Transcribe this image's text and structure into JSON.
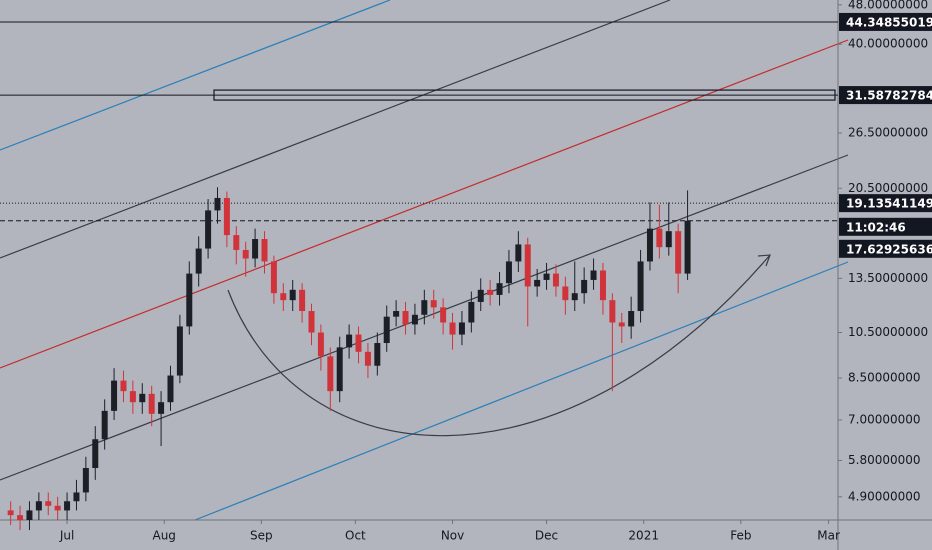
{
  "chart_data": {
    "type": "candlestick",
    "log_scale": true,
    "up_color": "#1c1f26",
    "down_color": "#d1333b",
    "x": [
      -18,
      -15,
      -12,
      -9,
      -6,
      -3,
      0,
      3,
      6,
      9,
      12,
      15,
      18,
      21,
      24,
      27,
      30,
      33,
      36,
      39,
      42,
      45,
      48,
      51,
      54,
      57,
      60,
      63,
      66,
      69,
      72,
      75,
      78,
      81,
      84,
      87,
      90,
      93,
      96,
      99,
      102,
      105,
      108,
      111,
      114,
      117,
      120,
      123,
      126,
      129,
      132,
      135,
      138,
      141,
      144,
      147,
      150,
      153,
      156,
      159,
      162,
      165,
      168,
      171,
      174,
      177,
      180,
      183,
      186,
      189,
      192,
      195,
      198
    ],
    "open": [
      4.6,
      4.5,
      4.4,
      4.6,
      4.8,
      4.7,
      4.6,
      4.8,
      5.0,
      5.6,
      6.4,
      7.3,
      8.4,
      8.0,
      7.6,
      7.9,
      7.2,
      7.6,
      8.6,
      10.8,
      13.8,
      15.5,
      18.5,
      19.6,
      16.5,
      15.4,
      14.8,
      16.2,
      14.6,
      12.6,
      12.2,
      12.8,
      11.6,
      10.5,
      9.4,
      8.0,
      9.8,
      10.4,
      9.6,
      9.0,
      10.0,
      11.3,
      11.6,
      10.9,
      11.4,
      12.2,
      11.8,
      11.0,
      10.4,
      11.0,
      12.1,
      12.8,
      12.5,
      13.2,
      14.6,
      15.8,
      13.0,
      13.4,
      13.8,
      13.0,
      12.2,
      12.6,
      13.4,
      14.0,
      12.2,
      11.0,
      10.8,
      11.6,
      14.6,
      17.0,
      15.6,
      16.8,
      13.8
    ],
    "high": [
      4.8,
      4.7,
      4.8,
      5.0,
      5.0,
      4.9,
      5.0,
      5.3,
      5.9,
      6.8,
      7.7,
      8.9,
      8.8,
      8.4,
      8.3,
      8.2,
      8.0,
      9.0,
      11.4,
      14.6,
      16.4,
      19.5,
      20.6,
      20.2,
      17.2,
      16.0,
      17.0,
      16.8,
      15.0,
      13.2,
      13.4,
      13.2,
      12.0,
      10.9,
      9.8,
      10.3,
      10.9,
      10.8,
      10.0,
      10.5,
      11.9,
      12.2,
      12.1,
      12.0,
      12.8,
      12.8,
      12.3,
      11.5,
      11.6,
      12.7,
      13.5,
      13.4,
      13.9,
      15.4,
      16.8,
      16.3,
      14.1,
      14.5,
      14.4,
      13.6,
      14.6,
      14.2,
      14.8,
      14.5,
      12.6,
      11.5,
      12.4,
      15.4,
      19.2,
      19.0,
      19.2,
      17.4,
      20.3
    ],
    "low": [
      4.3,
      4.2,
      4.2,
      4.4,
      4.5,
      4.4,
      4.4,
      4.6,
      4.8,
      5.3,
      6.1,
      7.0,
      7.6,
      7.2,
      7.2,
      6.8,
      6.2,
      7.3,
      8.3,
      10.4,
      13.0,
      14.8,
      17.4,
      15.6,
      14.4,
      13.6,
      14.2,
      13.8,
      12.0,
      11.6,
      11.6,
      11.0,
      9.9,
      8.8,
      7.3,
      7.6,
      9.3,
      9.1,
      8.5,
      8.6,
      9.6,
      10.8,
      10.4,
      10.4,
      10.9,
      11.2,
      10.4,
      9.7,
      9.9,
      10.5,
      11.6,
      11.9,
      11.9,
      12.6,
      13.9,
      10.8,
      12.4,
      12.8,
      12.4,
      11.4,
      11.6,
      12.0,
      12.8,
      11.4,
      8.0,
      10.0,
      10.2,
      11.0,
      14.0,
      14.8,
      15.0,
      12.6,
      13.4
    ],
    "close": [
      4.5,
      4.4,
      4.6,
      4.8,
      4.7,
      4.6,
      4.8,
      5.0,
      5.6,
      6.4,
      7.3,
      8.4,
      8.0,
      7.6,
      7.9,
      7.2,
      7.6,
      8.6,
      10.8,
      13.8,
      15.5,
      18.5,
      19.6,
      16.5,
      15.4,
      14.8,
      16.2,
      14.6,
      12.6,
      12.2,
      12.8,
      11.6,
      10.5,
      9.4,
      8.0,
      9.8,
      10.4,
      9.6,
      9.0,
      10.0,
      11.3,
      11.6,
      10.9,
      11.4,
      12.2,
      11.8,
      11.0,
      10.4,
      11.0,
      12.1,
      12.8,
      12.5,
      13.2,
      14.6,
      15.8,
      13.0,
      13.4,
      13.8,
      13.0,
      12.2,
      12.6,
      13.4,
      14.0,
      12.2,
      11.0,
      10.8,
      11.6,
      14.6,
      17.0,
      15.6,
      16.8,
      13.8,
      17.63
    ],
    "xlim": [
      -21.4,
      246
    ],
    "xticks": [
      {
        "value": 0,
        "label": "Jul"
      },
      {
        "value": 31,
        "label": "Aug"
      },
      {
        "value": 62,
        "label": "Sep"
      },
      {
        "value": 92,
        "label": "Oct"
      },
      {
        "value": 123,
        "label": "Nov"
      },
      {
        "value": 153,
        "label": "Dec"
      },
      {
        "value": 184,
        "label": "2021"
      },
      {
        "value": 215,
        "label": "Feb"
      },
      {
        "value": 243,
        "label": "Mar"
      }
    ],
    "ylim": [
      4.4,
      49.1
    ],
    "yticks": [
      {
        "value": 48,
        "label": "48.00000000"
      },
      {
        "value": 40,
        "label": "40.00000000"
      },
      {
        "value": 26.5,
        "label": "26.50000000"
      },
      {
        "value": 20.5,
        "label": "20.50000000"
      },
      {
        "value": 13.5,
        "label": "13.50000000"
      },
      {
        "value": 10.5,
        "label": "10.50000000"
      },
      {
        "value": 8.5,
        "label": "8.50000000"
      },
      {
        "value": 7,
        "label": "7.00000000"
      },
      {
        "value": 5.8,
        "label": "5.80000000"
      },
      {
        "value": 4.9,
        "label": "4.90000000"
      }
    ],
    "levels": [
      {
        "value": 44.34855019,
        "style": "solid"
      },
      {
        "value": 31.58782784,
        "style": "box"
      },
      {
        "value": 19.13541149,
        "style": "dotted"
      },
      {
        "value": 17.62925636,
        "style": "dashed"
      }
    ],
    "countdown": "11:02:46"
  }
}
